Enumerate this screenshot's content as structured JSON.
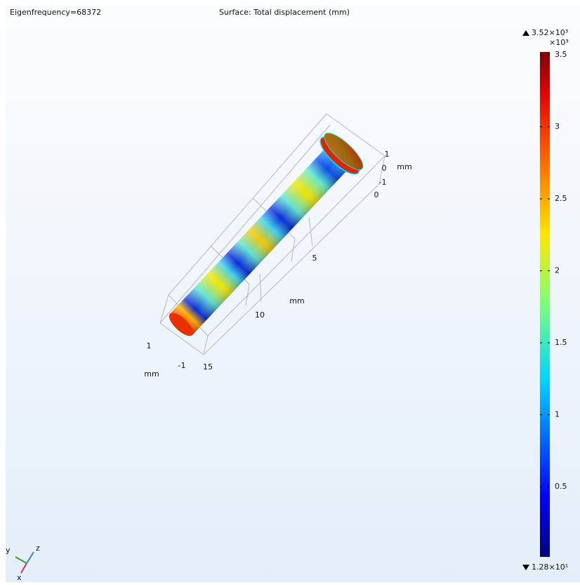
{
  "chart_data": {
    "type": "surface3d",
    "label": "Eigenfrequency=68372",
    "title": "Surface: Total displacement (mm)",
    "colorbar": {
      "lim": [
        0.0128,
        3.52
      ],
      "ticks": [
        0.5,
        1,
        1.5,
        2,
        2.5,
        3,
        3.5
      ],
      "multiplier": "×10³",
      "max": {
        "value": 3.52,
        "label": "3.52×10³"
      },
      "min": {
        "value": 0.0128,
        "label": "1.28×10¹"
      }
    },
    "axes": {
      "long": {
        "ticks": [
          0,
          5,
          10,
          15
        ],
        "unit": "mm"
      },
      "right": {
        "ticks": [
          1,
          0,
          -1
        ],
        "unit": "mm"
      },
      "left": {
        "ticks": [
          1,
          -1
        ],
        "unit": "mm"
      }
    },
    "triad": {
      "y": "y",
      "z": "z",
      "x": "x"
    }
  }
}
